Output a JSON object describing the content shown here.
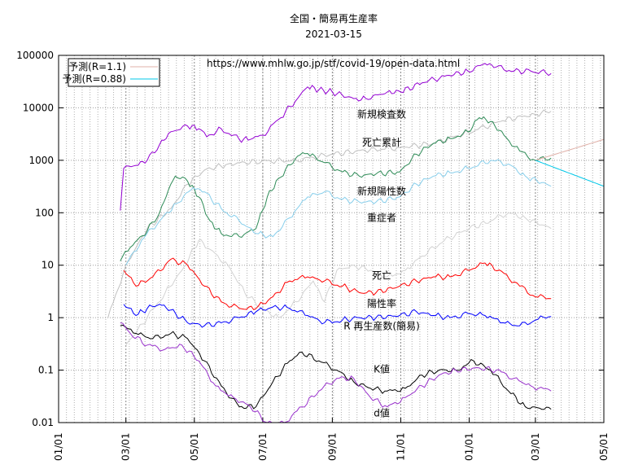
{
  "title": "全国・簡易再生産率",
  "date": "2021-03-15",
  "url": "https://www.mhlw.go.jp/stf/covid-19/open-data.html",
  "chart_data": {
    "type": "line",
    "title": "全国・簡易再生産率",
    "subtitle": "2021-03-15",
    "yscale": "log",
    "ylim": [
      0.01,
      100000
    ],
    "xlim": [
      "2020-01-01",
      "2021-05-01"
    ],
    "ytick_labels": [
      "100000",
      "10000",
      "1000",
      "100",
      "10",
      "1",
      "0.1",
      "0.01"
    ],
    "xtick_labels": [
      "01/01",
      "03/01",
      "05/01",
      "07/01",
      "09/01",
      "11/01",
      "01/01",
      "03/01",
      "05/01"
    ],
    "grid": true,
    "legend_position": "top-left",
    "legend": [
      {
        "label": "予測(R=1.1)",
        "color": "#e0b0a8"
      },
      {
        "label": "予測(R=0.88)",
        "color": "#00c8e8"
      }
    ],
    "series": [
      {
        "label": "新規検査数",
        "color": "#9400d3",
        "label_x": "2020-10-15",
        "label_y": 6500,
        "points": [
          [
            "2020-02-25",
            110
          ],
          [
            "2020-02-28",
            700
          ],
          [
            "2020-03-10",
            800
          ],
          [
            "2020-03-20",
            1000
          ],
          [
            "2020-03-31",
            2000
          ],
          [
            "2020-04-10",
            3500
          ],
          [
            "2020-04-25",
            4500
          ],
          [
            "2020-05-05",
            4000
          ],
          [
            "2020-05-12",
            2800
          ],
          [
            "2020-05-25",
            4000
          ],
          [
            "2020-06-10",
            2500
          ],
          [
            "2020-06-20",
            2500
          ],
          [
            "2020-07-01",
            3000
          ],
          [
            "2020-07-15",
            6000
          ],
          [
            "2020-08-01",
            15000
          ],
          [
            "2020-08-10",
            25000
          ],
          [
            "2020-08-20",
            22000
          ],
          [
            "2020-09-01",
            20000
          ],
          [
            "2020-09-20",
            15000
          ],
          [
            "2020-10-01",
            15000
          ],
          [
            "2020-10-20",
            20000
          ],
          [
            "2020-11-01",
            20000
          ],
          [
            "2020-11-20",
            30000
          ],
          [
            "2020-12-10",
            40000
          ],
          [
            "2020-12-31",
            50000
          ],
          [
            "2021-01-15",
            70000
          ],
          [
            "2021-01-25",
            60000
          ],
          [
            "2021-02-10",
            50000
          ],
          [
            "2021-02-25",
            50000
          ],
          [
            "2021-03-15",
            45000
          ]
        ]
      },
      {
        "label": "死亡累計",
        "color": "#c0c0c0",
        "label_x": "2020-10-15",
        "label_y": 1900,
        "points": [
          [
            "2020-02-14",
            1
          ],
          [
            "2020-03-01",
            10
          ],
          [
            "2020-03-20",
            50
          ],
          [
            "2020-04-10",
            120
          ],
          [
            "2020-04-25",
            350
          ],
          [
            "2020-05-10",
            650
          ],
          [
            "2020-05-31",
            850
          ],
          [
            "2020-06-30",
            960
          ],
          [
            "2020-07-31",
            1000
          ],
          [
            "2020-08-31",
            1300
          ],
          [
            "2020-09-30",
            1550
          ],
          [
            "2020-10-31",
            1750
          ],
          [
            "2020-11-30",
            2100
          ],
          [
            "2020-12-31",
            3400
          ],
          [
            "2021-01-31",
            5700
          ],
          [
            "2021-02-28",
            7600
          ],
          [
            "2021-03-15",
            8600
          ]
        ]
      },
      {
        "label": "新規陽性数",
        "color": "#2e8b57",
        "label_x": "2020-10-15",
        "label_y": 220,
        "points": [
          [
            "2020-02-25",
            12
          ],
          [
            "2020-03-05",
            22
          ],
          [
            "2020-03-20",
            45
          ],
          [
            "2020-03-31",
            100
          ],
          [
            "2020-04-10",
            350
          ],
          [
            "2020-04-14",
            500
          ],
          [
            "2020-04-25",
            400
          ],
          [
            "2020-05-05",
            200
          ],
          [
            "2020-05-15",
            70
          ],
          [
            "2020-05-25",
            40
          ],
          [
            "2020-06-10",
            35
          ],
          [
            "2020-06-25",
            50
          ],
          [
            "2020-07-05",
            200
          ],
          [
            "2020-07-15",
            450
          ],
          [
            "2020-08-01",
            1200
          ],
          [
            "2020-08-10",
            1350
          ],
          [
            "2020-08-25",
            900
          ],
          [
            "2020-09-10",
            600
          ],
          [
            "2020-09-25",
            500
          ],
          [
            "2020-10-10",
            550
          ],
          [
            "2020-10-31",
            600
          ],
          [
            "2020-11-15",
            1300
          ],
          [
            "2020-11-30",
            2100
          ],
          [
            "2020-12-15",
            2600
          ],
          [
            "2020-12-31",
            3500
          ],
          [
            "2021-01-10",
            6500
          ],
          [
            "2021-01-20",
            5500
          ],
          [
            "2021-02-01",
            3000
          ],
          [
            "2021-02-15",
            1500
          ],
          [
            "2021-03-01",
            1000
          ],
          [
            "2021-03-15",
            1100
          ]
        ]
      },
      {
        "label": "重症者",
        "color": "#87ceeb",
        "label_x": "2020-10-15",
        "label_y": 70,
        "points": [
          [
            "2020-03-01",
            10
          ],
          [
            "2020-03-15",
            30
          ],
          [
            "2020-03-31",
            70
          ],
          [
            "2020-04-15",
            150
          ],
          [
            "2020-04-30",
            300
          ],
          [
            "2020-05-10",
            250
          ],
          [
            "2020-05-25",
            120
          ],
          [
            "2020-06-10",
            70
          ],
          [
            "2020-06-25",
            40
          ],
          [
            "2020-07-10",
            35
          ],
          [
            "2020-07-25",
            80
          ],
          [
            "2020-08-10",
            200
          ],
          [
            "2020-08-25",
            250
          ],
          [
            "2020-09-10",
            180
          ],
          [
            "2020-09-25",
            160
          ],
          [
            "2020-10-10",
            160
          ],
          [
            "2020-10-31",
            200
          ],
          [
            "2020-11-15",
            350
          ],
          [
            "2020-11-30",
            500
          ],
          [
            "2020-12-15",
            580
          ],
          [
            "2020-12-31",
            700
          ],
          [
            "2021-01-20",
            1000
          ],
          [
            "2021-02-05",
            850
          ],
          [
            "2021-02-20",
            500
          ],
          [
            "2021-03-15",
            320
          ]
        ]
      },
      {
        "label": "死亡",
        "color": "#d3d3d3",
        "label_x": "2020-10-15",
        "label_y": 5.5,
        "points": [
          [
            "2020-03-01",
            0.3
          ],
          [
            "2020-03-20",
            1
          ],
          [
            "2020-04-05",
            3
          ],
          [
            "2020-04-20",
            8
          ],
          [
            "2020-05-05",
            30
          ],
          [
            "2020-05-15",
            20
          ],
          [
            "2020-05-31",
            10
          ],
          [
            "2020-06-15",
            3
          ],
          [
            "2020-06-30",
            1.5
          ],
          [
            "2020-07-15",
            1
          ],
          [
            "2020-07-31",
            2
          ],
          [
            "2020-08-15",
            5
          ],
          [
            "2020-08-25",
            2
          ],
          [
            "2020-09-05",
            8
          ],
          [
            "2020-09-20",
            10
          ],
          [
            "2020-10-05",
            8
          ],
          [
            "2020-10-20",
            6
          ],
          [
            "2020-11-05",
            8
          ],
          [
            "2020-11-20",
            15
          ],
          [
            "2020-12-10",
            30
          ],
          [
            "2021-01-01",
            50
          ],
          [
            "2021-01-20",
            70
          ],
          [
            "2021-02-05",
            100
          ],
          [
            "2021-02-20",
            80
          ],
          [
            "2021-03-15",
            50
          ]
        ]
      },
      {
        "label": "陽性率",
        "color": "#ff0000",
        "label_x": "2020-10-15",
        "label_y": 1.6,
        "points": [
          [
            "2020-02-28",
            8
          ],
          [
            "2020-03-10",
            4
          ],
          [
            "2020-03-25",
            6
          ],
          [
            "2020-04-10",
            13
          ],
          [
            "2020-04-25",
            10
          ],
          [
            "2020-05-10",
            4
          ],
          [
            "2020-05-25",
            2
          ],
          [
            "2020-06-10",
            1.5
          ],
          [
            "2020-06-25",
            1.5
          ],
          [
            "2020-07-10",
            2.5
          ],
          [
            "2020-07-25",
            5
          ],
          [
            "2020-08-10",
            6
          ],
          [
            "2020-08-25",
            5
          ],
          [
            "2020-09-10",
            4
          ],
          [
            "2020-09-25",
            3
          ],
          [
            "2020-10-10",
            3
          ],
          [
            "2020-10-31",
            4
          ],
          [
            "2020-11-15",
            5
          ],
          [
            "2020-11-30",
            6
          ],
          [
            "2020-12-15",
            6
          ],
          [
            "2020-12-31",
            8
          ],
          [
            "2021-01-15",
            11
          ],
          [
            "2021-02-01",
            7
          ],
          [
            "2021-02-15",
            4
          ],
          [
            "2021-03-01",
            2.5
          ],
          [
            "2021-03-15",
            2.3
          ]
        ]
      },
      {
        "label": "R 再生産数(簡易)",
        "color": "#0000ff",
        "label_x": "2020-10-15",
        "label_y": 0.6,
        "points": [
          [
            "2020-02-28",
            1.8
          ],
          [
            "2020-03-10",
            1.1
          ],
          [
            "2020-03-20",
            1.5
          ],
          [
            "2020-03-31",
            1.8
          ],
          [
            "2020-04-10",
            1.4
          ],
          [
            "2020-04-25",
            0.8
          ],
          [
            "2020-05-10",
            0.7
          ],
          [
            "2020-05-25",
            0.8
          ],
          [
            "2020-06-10",
            1.0
          ],
          [
            "2020-06-25",
            1.3
          ],
          [
            "2020-07-10",
            1.6
          ],
          [
            "2020-07-25",
            1.5
          ],
          [
            "2020-08-10",
            1.1
          ],
          [
            "2020-08-25",
            0.8
          ],
          [
            "2020-09-10",
            0.9
          ],
          [
            "2020-09-25",
            1.0
          ],
          [
            "2020-10-10",
            1.0
          ],
          [
            "2020-10-31",
            1.1
          ],
          [
            "2020-11-15",
            1.3
          ],
          [
            "2020-11-30",
            1.1
          ],
          [
            "2020-12-15",
            1.0
          ],
          [
            "2020-12-31",
            1.2
          ],
          [
            "2021-01-15",
            1.1
          ],
          [
            "2021-01-31",
            0.8
          ],
          [
            "2021-02-15",
            0.7
          ],
          [
            "2021-03-01",
            0.9
          ],
          [
            "2021-03-15",
            1.05
          ]
        ]
      },
      {
        "label": "K値",
        "color": "#000000",
        "label_x": "2020-10-15",
        "label_y": 0.09,
        "points": [
          [
            "2020-02-25",
            0.7
          ],
          [
            "2020-03-10",
            0.5
          ],
          [
            "2020-03-25",
            0.4
          ],
          [
            "2020-04-10",
            0.5
          ],
          [
            "2020-04-25",
            0.4
          ],
          [
            "2020-05-10",
            0.15
          ],
          [
            "2020-05-25",
            0.05
          ],
          [
            "2020-06-10",
            0.02
          ],
          [
            "2020-06-25",
            0.02
          ],
          [
            "2020-07-10",
            0.06
          ],
          [
            "2020-07-25",
            0.15
          ],
          [
            "2020-08-05",
            0.22
          ],
          [
            "2020-08-20",
            0.15
          ],
          [
            "2020-09-05",
            0.1
          ],
          [
            "2020-09-20",
            0.06
          ],
          [
            "2020-10-05",
            0.045
          ],
          [
            "2020-10-20",
            0.04
          ],
          [
            "2020-11-05",
            0.045
          ],
          [
            "2020-11-20",
            0.08
          ],
          [
            "2020-12-05",
            0.1
          ],
          [
            "2020-12-20",
            0.1
          ],
          [
            "2021-01-05",
            0.15
          ],
          [
            "2021-01-20",
            0.1
          ],
          [
            "2021-02-05",
            0.04
          ],
          [
            "2021-02-20",
            0.02
          ],
          [
            "2021-03-15",
            0.018
          ]
        ]
      },
      {
        "label": "d値",
        "color": "#9932cc",
        "label_x": "2020-10-15",
        "label_y": 0.013,
        "points": [
          [
            "2020-02-25",
            0.8
          ],
          [
            "2020-03-05",
            0.5
          ],
          [
            "2020-03-20",
            0.3
          ],
          [
            "2020-04-05",
            0.25
          ],
          [
            "2020-04-20",
            0.3
          ],
          [
            "2020-05-05",
            0.15
          ],
          [
            "2020-05-20",
            0.05
          ],
          [
            "2020-06-05",
            0.03
          ],
          [
            "2020-06-20",
            0.02
          ],
          [
            "2020-07-05",
            0.01
          ],
          [
            "2020-07-20",
            0.01
          ],
          [
            "2020-08-05",
            0.02
          ],
          [
            "2020-08-20",
            0.04
          ],
          [
            "2020-09-05",
            0.07
          ],
          [
            "2020-09-20",
            0.07
          ],
          [
            "2020-10-05",
            0.03
          ],
          [
            "2020-10-20",
            0.02
          ],
          [
            "2020-11-05",
            0.03
          ],
          [
            "2020-11-20",
            0.05
          ],
          [
            "2020-12-05",
            0.08
          ],
          [
            "2020-12-20",
            0.1
          ],
          [
            "2021-01-10",
            0.11
          ],
          [
            "2021-01-25",
            0.1
          ],
          [
            "2021-02-10",
            0.07
          ],
          [
            "2021-02-25",
            0.05
          ],
          [
            "2021-03-15",
            0.04
          ]
        ]
      },
      {
        "label": "予測(R=1.1)",
        "color": "#e0b0a8",
        "in_legend": true,
        "points": [
          [
            "2021-03-01",
            1000
          ],
          [
            "2021-05-01",
            2500
          ]
        ]
      },
      {
        "label": "予測(R=0.88)",
        "color": "#00c8e8",
        "in_legend": true,
        "points": [
          [
            "2021-03-01",
            1000
          ],
          [
            "2021-05-01",
            320
          ]
        ]
      }
    ]
  }
}
